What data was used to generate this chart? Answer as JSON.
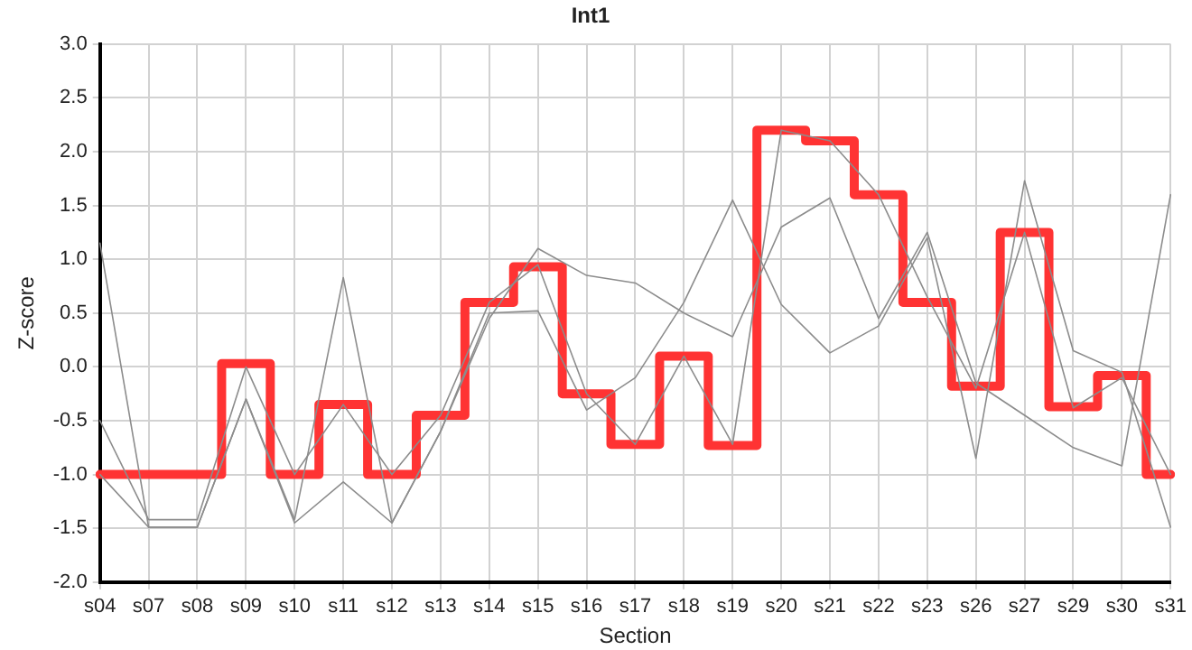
{
  "chart_data": {
    "type": "line",
    "title": "Int1",
    "xlabel": "Section",
    "ylabel": "Z-score",
    "categories": [
      "s04",
      "s07",
      "s08",
      "s09",
      "s10",
      "s11",
      "s12",
      "s13",
      "s14",
      "s15",
      "s16",
      "s17",
      "s18",
      "s19",
      "s20",
      "s21",
      "s22",
      "s23",
      "s26",
      "s27",
      "s29",
      "s30",
      "s31"
    ],
    "series": [
      {
        "color": "#8c8c8c",
        "values": [
          1.15,
          -1.49,
          -1.49,
          -0.3,
          -1.42,
          0.83,
          -1.45,
          -0.6,
          0.45,
          1.1,
          0.85,
          0.78,
          0.5,
          0.28,
          1.3,
          1.57,
          0.45,
          1.25,
          -0.15,
          -0.45,
          -0.75,
          -0.92,
          1.6
        ]
      },
      {
        "color": "#8c8c8c",
        "values": [
          -0.5,
          -1.42,
          -1.42,
          0.0,
          -1.0,
          -0.35,
          -1.0,
          -0.45,
          0.6,
          0.95,
          -0.25,
          -0.72,
          0.1,
          -0.72,
          2.2,
          2.1,
          1.6,
          0.65,
          -0.2,
          1.25,
          -0.38,
          -0.1,
          -1.0
        ]
      },
      {
        "color": "#8c8c8c",
        "values": [
          -1.0,
          -1.49,
          -1.49,
          -0.3,
          -1.45,
          -1.07,
          -1.45,
          -0.6,
          0.5,
          0.52,
          -0.4,
          -0.1,
          0.6,
          1.55,
          0.58,
          0.13,
          0.38,
          1.2,
          -0.85,
          1.73,
          0.15,
          -0.05,
          -1.49
        ]
      },
      {
        "type": "step",
        "color": "#ff3333",
        "values": [
          -1.0,
          -1.0,
          -1.0,
          0.03,
          -1.0,
          -0.35,
          -1.0,
          -0.45,
          0.6,
          0.93,
          -0.25,
          -0.72,
          0.1,
          -0.73,
          2.2,
          2.1,
          1.6,
          0.6,
          -0.18,
          1.25,
          -0.37,
          -0.08,
          -1.0
        ]
      }
    ],
    "ylim": [
      -2.0,
      3.0
    ],
    "yticks": [
      {
        "value": -2.0,
        "label": "-2.0"
      },
      {
        "value": -1.5,
        "label": "-1.5"
      },
      {
        "value": -1.0,
        "label": "-1.0"
      },
      {
        "value": -0.5,
        "label": "-0.5"
      },
      {
        "value": 0,
        "label": "0.0"
      },
      {
        "value": 0.5,
        "label": "0.5"
      },
      {
        "value": 1.0,
        "label": "1.0"
      },
      {
        "value": 1.5,
        "label": "1.5"
      },
      {
        "value": 2.0,
        "label": "2.0"
      },
      {
        "value": 2.5,
        "label": "2.5"
      },
      {
        "value": 3.0,
        "label": "3.0"
      }
    ],
    "grid": true,
    "legend": false,
    "marker": "none"
  }
}
